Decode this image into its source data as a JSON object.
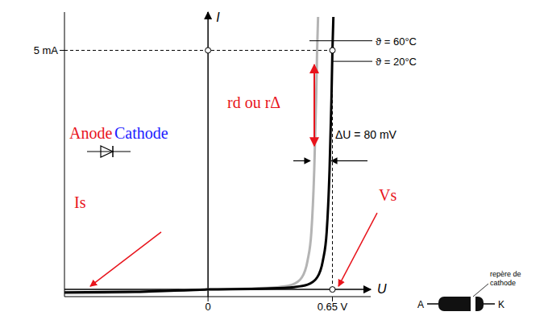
{
  "chart_data": {
    "type": "line",
    "x_label": "U",
    "y_label": "I",
    "grid": false,
    "xlim": [
      -0.75,
      0.85
    ],
    "ylim": [
      -0.15,
      5.8
    ],
    "xticks": [
      0,
      {
        "value": 0.65,
        "label": "0.65 V"
      }
    ],
    "yticks": [
      {
        "value": 5,
        "label": "5 mA"
      }
    ],
    "series": [
      {
        "name": "ϑ = 60°C",
        "color": "#b4b4b4",
        "x": [
          -0.75,
          -0.4,
          0,
          0.3,
          0.37,
          0.44,
          0.49,
          0.52,
          0.54,
          0.555,
          0.565,
          0.57,
          0.575
        ],
        "values": [
          -0.08,
          -0.06,
          0,
          0.03,
          0.05,
          0.1,
          0.25,
          0.6,
          1.2,
          2.5,
          4,
          5,
          5.7
        ]
      },
      {
        "name": "ϑ = 20°C",
        "color": "#000000",
        "x": [
          -0.75,
          -0.4,
          0,
          0.3,
          0.45,
          0.52,
          0.57,
          0.6,
          0.62,
          0.635,
          0.645,
          0.65,
          0.655
        ],
        "values": [
          -0.06,
          -0.05,
          0,
          0.02,
          0.05,
          0.1,
          0.25,
          0.6,
          1.2,
          2.5,
          4,
          5,
          5.7
        ]
      }
    ],
    "annotations": [
      {
        "text": "rd ou rΔ",
        "color": "#e8141c"
      },
      {
        "text": "ΔU = 80 mV",
        "color": "#000000"
      },
      {
        "text": "Is",
        "color": "#e8141c"
      },
      {
        "text": "Vs",
        "color": "#e8141c"
      },
      {
        "text": "Anode",
        "color": "#e8141c"
      },
      {
        "text": "Cathode",
        "color": "#1a1aff"
      },
      {
        "text": "repère de cathode",
        "color": "#000000"
      },
      {
        "text": "A",
        "color": "#000000"
      },
      {
        "text": "K",
        "color": "#000000"
      }
    ]
  }
}
